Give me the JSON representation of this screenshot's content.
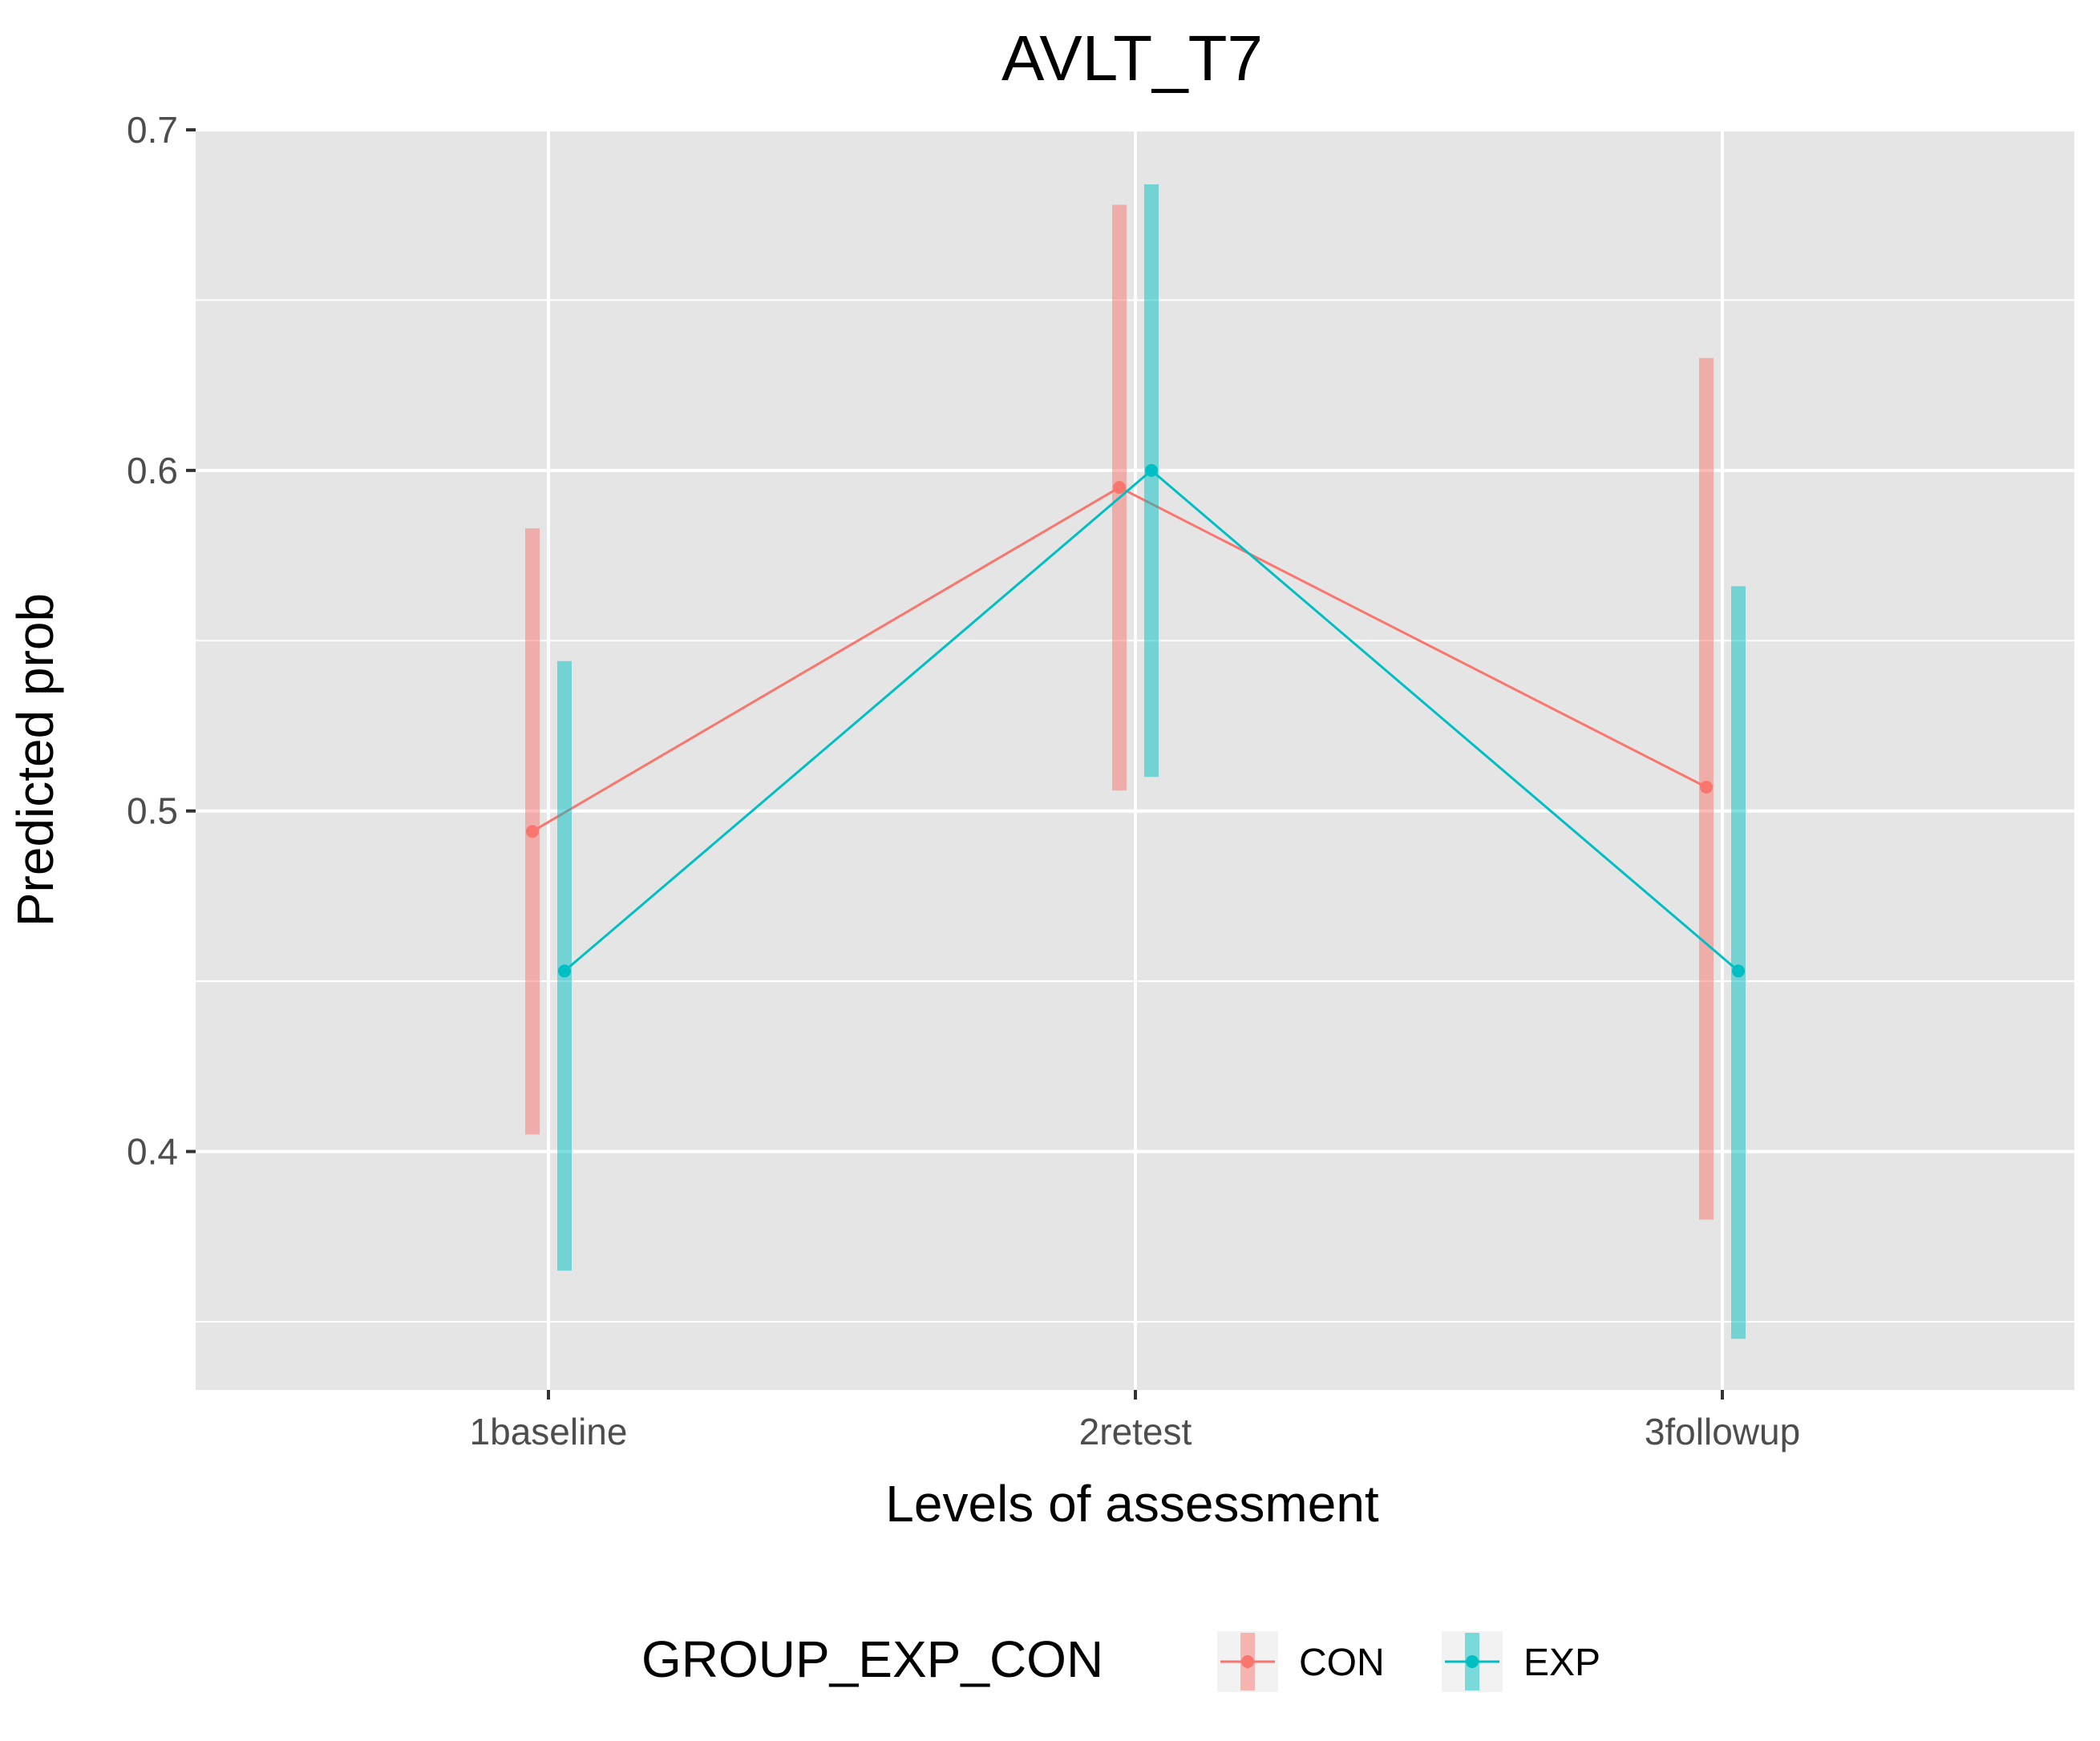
{
  "chart_data": {
    "type": "line",
    "title": "AVLT_T7",
    "xlabel": "Levels of assessment",
    "ylabel": "Predicted prob",
    "categories": [
      "1baseline",
      "2retest",
      "3followup"
    ],
    "yticks": [
      "0.4",
      "0.5",
      "0.6",
      "0.7"
    ],
    "ylim": [
      0.33,
      0.7
    ],
    "grid": true,
    "legend": {
      "title": "GROUP_EXP_CON",
      "position": "bottom"
    },
    "series": [
      {
        "name": "CON",
        "color": "#F8766D",
        "values": [
          0.494,
          0.595,
          0.507
        ],
        "lower": [
          0.405,
          0.506,
          0.38
        ],
        "upper": [
          0.583,
          0.678,
          0.633
        ]
      },
      {
        "name": "EXP",
        "color": "#00BFC4",
        "values": [
          0.453,
          0.6,
          0.453
        ],
        "lower": [
          0.365,
          0.51,
          0.345
        ],
        "upper": [
          0.544,
          0.684,
          0.566
        ]
      }
    ]
  }
}
